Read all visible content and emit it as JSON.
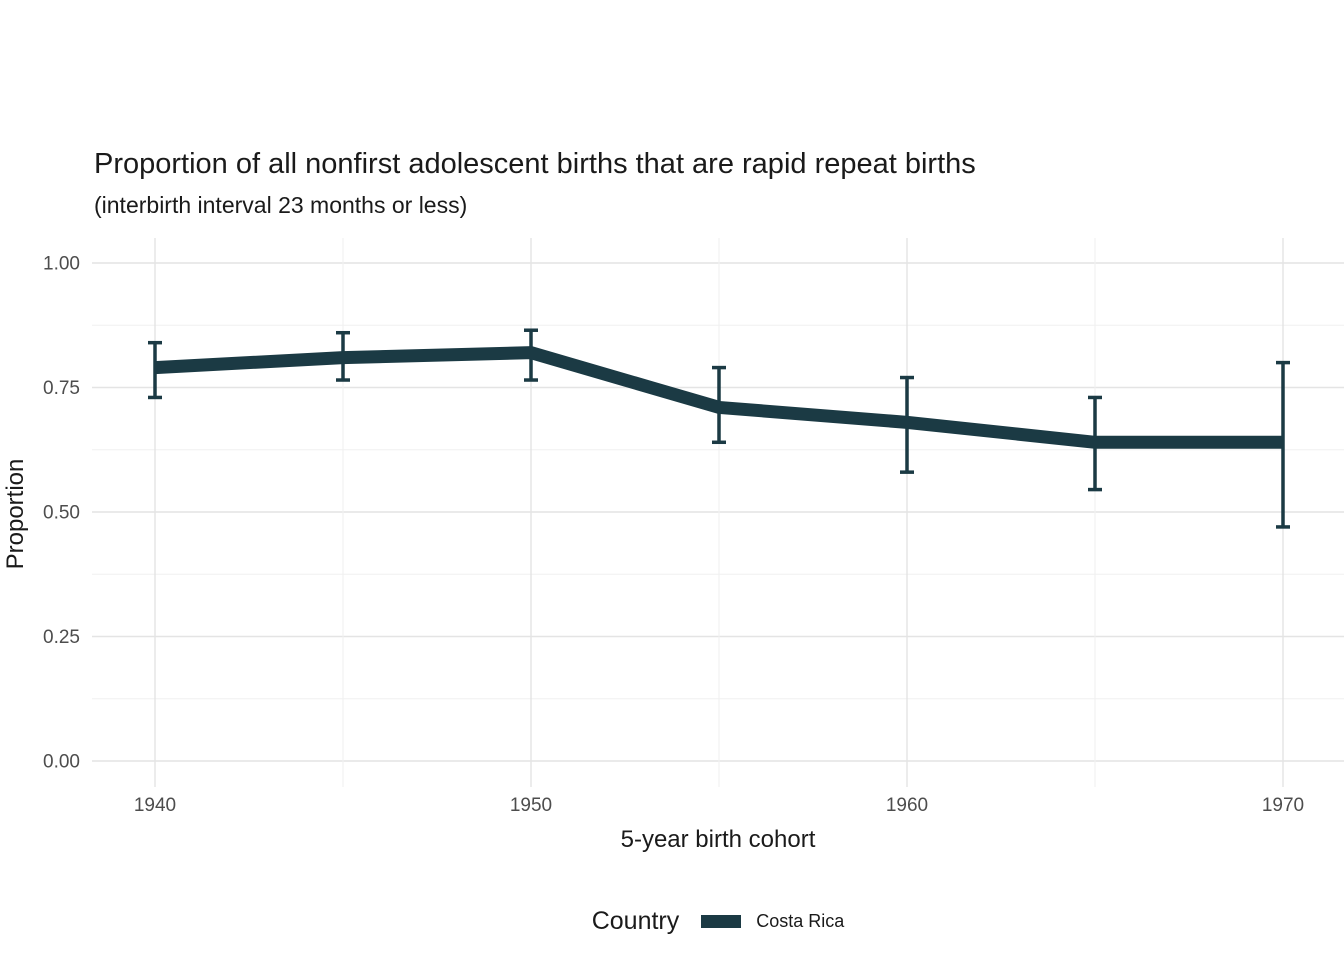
{
  "chart_data": {
    "type": "line",
    "title": "Proportion of all nonfirst adolescent births that are rapid repeat births",
    "subtitle": "(interbirth interval 23 months or less)",
    "xlabel": "5-year birth cohort",
    "ylabel": "Proportion",
    "x": [
      1940,
      1945,
      1950,
      1955,
      1960,
      1965,
      1970
    ],
    "series": [
      {
        "name": "Costa Rica",
        "color": "#1b3a44",
        "values": [
          0.79,
          0.81,
          0.82,
          0.71,
          0.68,
          0.64,
          0.64
        ],
        "ci_lower": [
          0.73,
          0.765,
          0.765,
          0.64,
          0.58,
          0.545,
          0.47
        ],
        "ci_upper": [
          0.84,
          0.86,
          0.865,
          0.79,
          0.77,
          0.73,
          0.8
        ]
      }
    ],
    "ylim": [
      0,
      1
    ],
    "grid": "on",
    "xticks": {
      "values": [
        1940,
        1950,
        1960,
        1970
      ],
      "labels": [
        "1940",
        "1950",
        "1960",
        "1970"
      ]
    },
    "x_gridlines": [
      1940,
      1945,
      1950,
      1955,
      1960,
      1965,
      1970
    ],
    "yticks": {
      "values": [
        0,
        0.25,
        0.5,
        0.75,
        1.0
      ],
      "labels": [
        "0.00",
        "0.25",
        "0.50",
        "0.75",
        "1.00"
      ]
    },
    "y_minor_gridlines": [
      0.125,
      0.375,
      0.625,
      0.875
    ],
    "legend": {
      "title": "Country",
      "position": "bottom",
      "entries": [
        {
          "label": "Costa Rica",
          "color": "#1b3a44"
        }
      ]
    },
    "colors": {
      "line": "#1b3a44",
      "grid_major": "#e4e4e4",
      "grid_minor": "#f0f0f0",
      "tick_label": "#4d4d4d",
      "text": "#1a1a1a",
      "background": "#ffffff"
    }
  }
}
